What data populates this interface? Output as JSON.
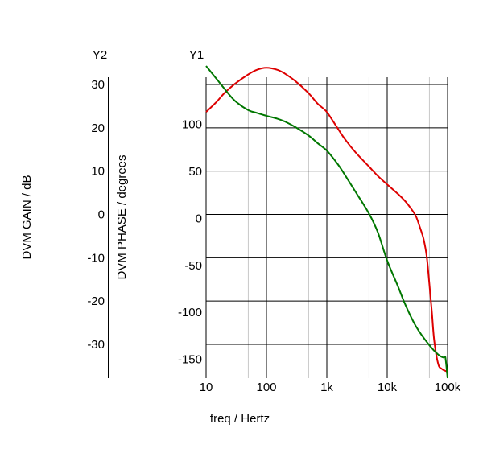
{
  "chart_data": {
    "type": "line",
    "title": "",
    "xlabel": "freq / Hertz",
    "x_scale": "log",
    "xlim": [
      10,
      100000
    ],
    "x_ticks": [
      10,
      100,
      1000,
      10000,
      100000
    ],
    "x_tick_labels": [
      "10",
      "100",
      "1k",
      "10k",
      "100k"
    ],
    "x_minor_gridlines": [
      50,
      500,
      5000,
      50000
    ],
    "grid": true,
    "y1": {
      "tag": "Y1",
      "label": "DVM PHASE / degrees",
      "ylim": [
        -170,
        150
      ],
      "ticks": [
        -150,
        -100,
        -50,
        0,
        50,
        100
      ],
      "tick_labels": [
        "-150",
        "-100",
        "-50",
        "0",
        "50",
        "100"
      ]
    },
    "y2": {
      "tag": "Y2",
      "label": "DVM GAIN / dB",
      "ylim": [
        -38,
        32
      ],
      "ticks": [
        -30,
        -20,
        -10,
        0,
        10,
        20,
        30
      ],
      "tick_labels": [
        "-30",
        "-20",
        "-10",
        "0",
        "10",
        "20",
        "30"
      ]
    },
    "series": [
      {
        "color": "#dd0000",
        "axis": "y1",
        "points": [
          [
            10,
            113
          ],
          [
            15,
            124
          ],
          [
            20,
            133
          ],
          [
            30,
            143
          ],
          [
            50,
            153
          ],
          [
            70,
            158
          ],
          [
            100,
            160
          ],
          [
            150,
            158
          ],
          [
            200,
            154
          ],
          [
            300,
            146
          ],
          [
            500,
            133
          ],
          [
            700,
            122
          ],
          [
            1000,
            113
          ],
          [
            1500,
            96
          ],
          [
            2000,
            84
          ],
          [
            3000,
            70
          ],
          [
            5000,
            55
          ],
          [
            7000,
            45
          ],
          [
            10000,
            36
          ],
          [
            15000,
            26
          ],
          [
            20000,
            18
          ],
          [
            25000,
            10
          ],
          [
            30000,
            2
          ],
          [
            35000,
            -10
          ],
          [
            40000,
            -22
          ],
          [
            45000,
            -40
          ],
          [
            50000,
            -70
          ],
          [
            55000,
            -100
          ],
          [
            60000,
            -130
          ],
          [
            70000,
            -155
          ],
          [
            80000,
            -160
          ],
          [
            90000,
            -162
          ],
          [
            100000,
            -163
          ]
        ]
      },
      {
        "color": "#007700",
        "axis": "y1",
        "points": [
          [
            10,
            162
          ],
          [
            15,
            148
          ],
          [
            20,
            138
          ],
          [
            30,
            125
          ],
          [
            50,
            115
          ],
          [
            70,
            112
          ],
          [
            100,
            109
          ],
          [
            150,
            106
          ],
          [
            200,
            103
          ],
          [
            300,
            97
          ],
          [
            500,
            88
          ],
          [
            700,
            80
          ],
          [
            1000,
            72
          ],
          [
            1500,
            58
          ],
          [
            2000,
            46
          ],
          [
            3000,
            28
          ],
          [
            5000,
            5
          ],
          [
            7000,
            -15
          ],
          [
            10000,
            -45
          ],
          [
            15000,
            -72
          ],
          [
            20000,
            -92
          ],
          [
            30000,
            -115
          ],
          [
            50000,
            -135
          ],
          [
            70000,
            -145
          ],
          [
            85000,
            -148
          ],
          [
            90000,
            -147
          ],
          [
            93000,
            -150
          ],
          [
            100000,
            -170
          ]
        ]
      }
    ]
  }
}
